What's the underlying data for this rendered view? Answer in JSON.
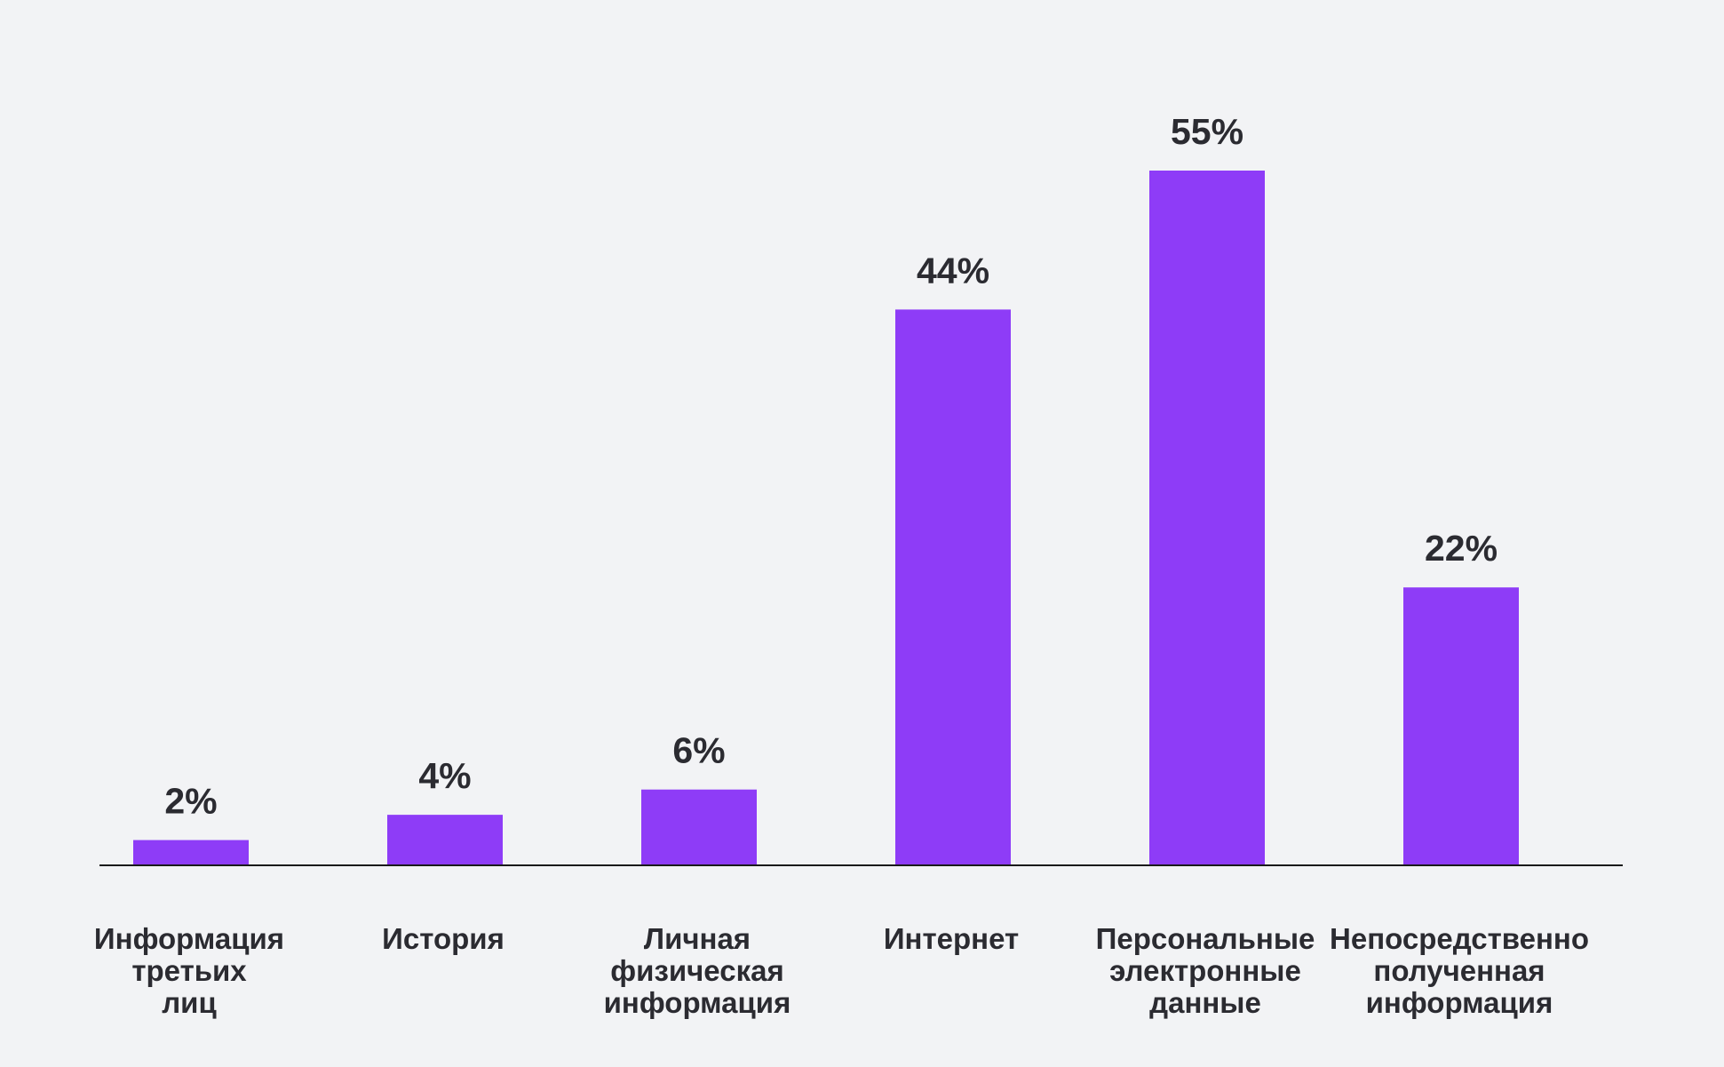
{
  "chart_data": {
    "type": "bar",
    "title": "",
    "xlabel": "",
    "ylabel": "",
    "ylim": [
      0,
      55
    ],
    "grid": false,
    "bar_color": "#8e3cf7",
    "baseline_color": "#1a1a1a",
    "text_color": "#2b2b31",
    "categories": [
      [
        "Информация",
        "третьих",
        "лиц"
      ],
      [
        "История"
      ],
      [
        "Личная",
        "физическая",
        "информация"
      ],
      [
        "Интернет"
      ],
      [
        "Персональные",
        "электронные",
        "данные"
      ],
      [
        "Непосредственно",
        "полученная",
        "информация"
      ]
    ],
    "values": [
      2,
      4,
      6,
      44,
      55,
      22
    ],
    "value_labels": [
      "2%",
      "4%",
      "6%",
      "44%",
      "55%",
      "22%"
    ]
  }
}
